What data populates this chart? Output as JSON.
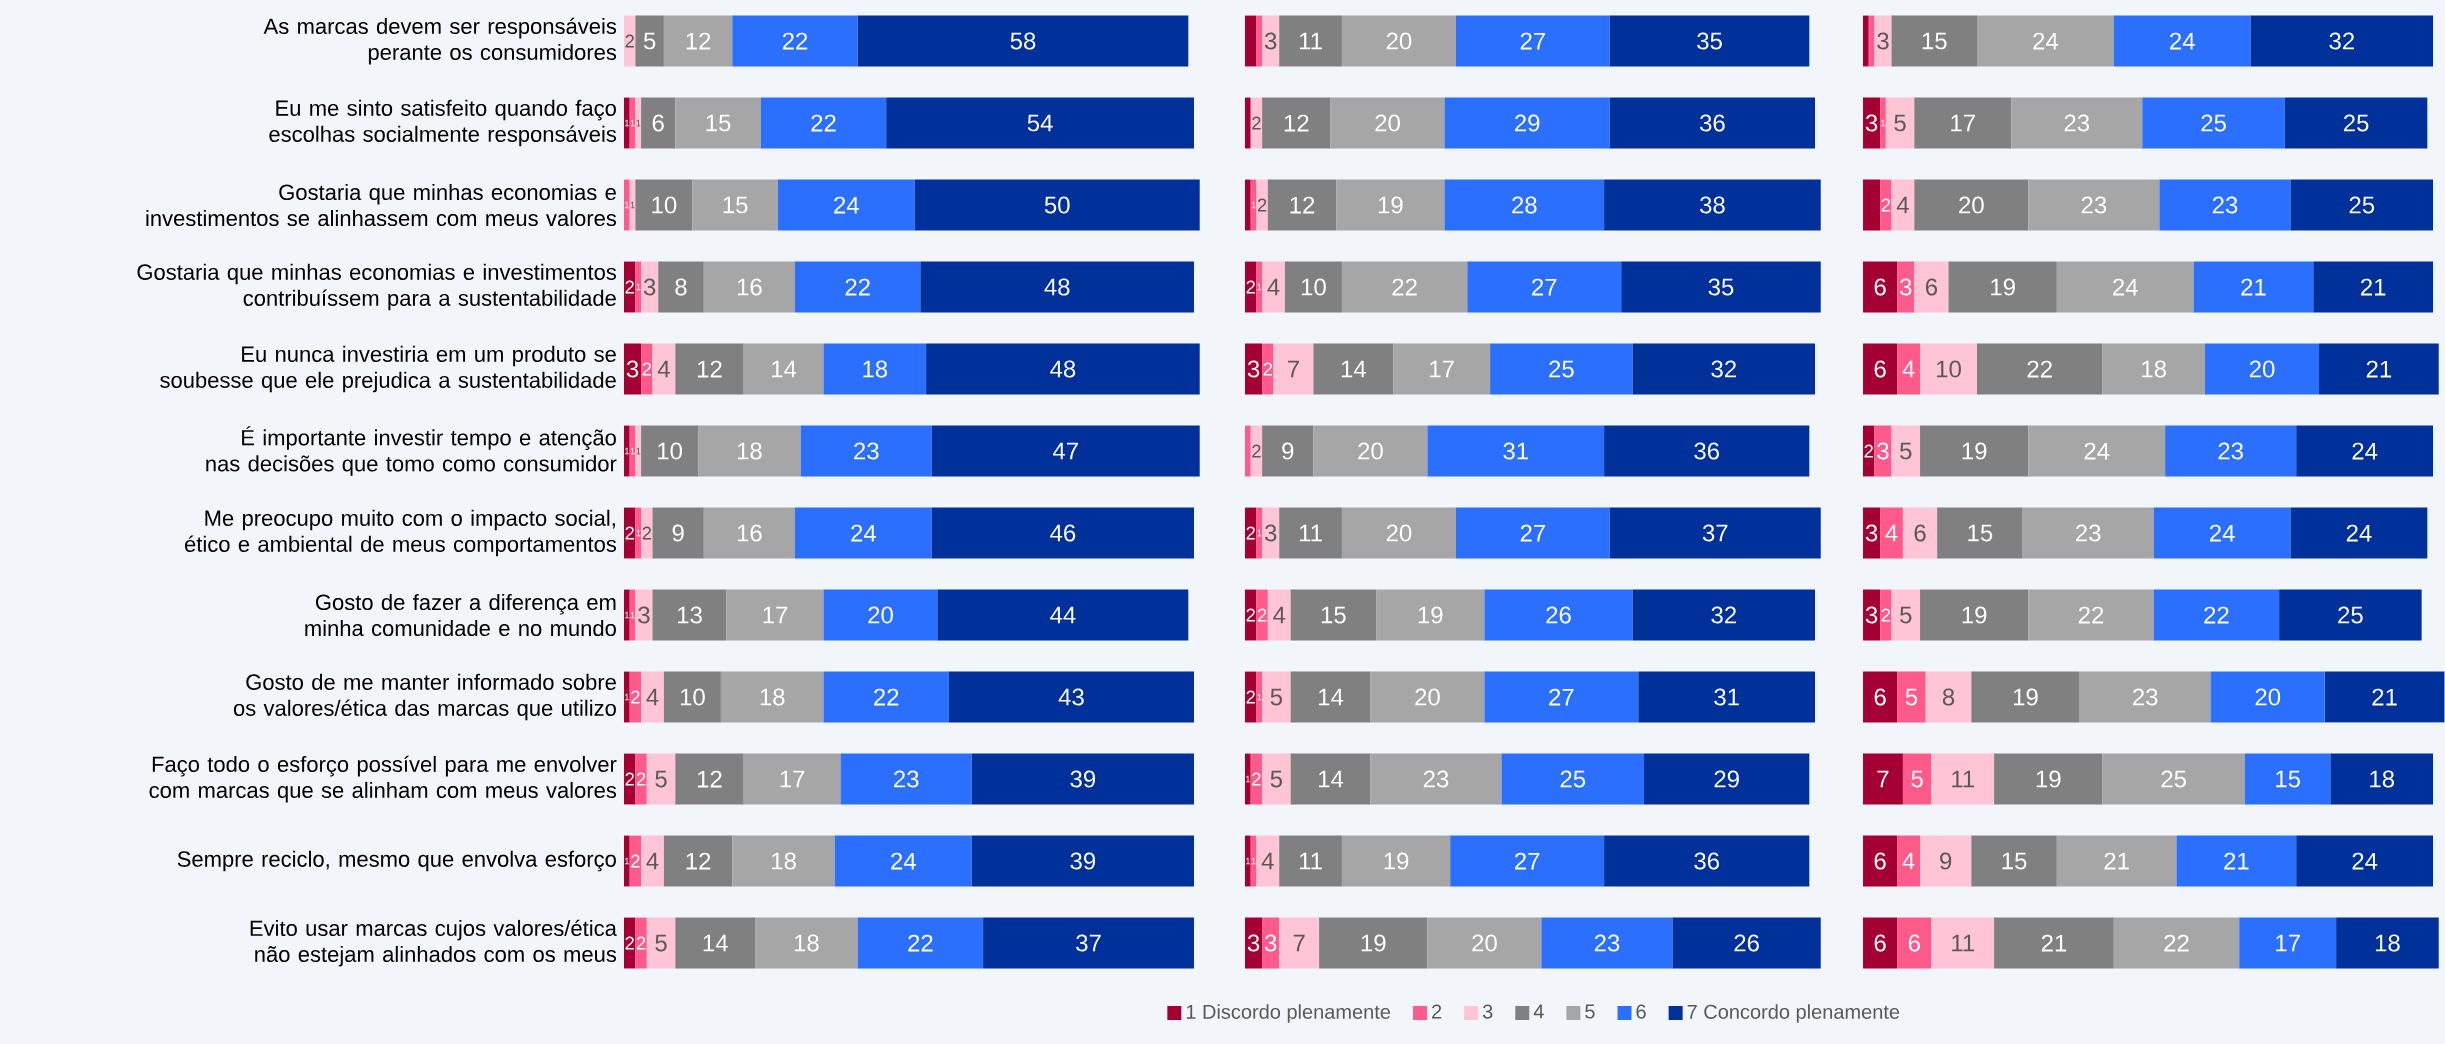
{
  "chart_data": [
    {
      "type": "bar",
      "orientation": "horizontal",
      "stacked": true,
      "data_labels": true,
      "tick_labels": "y",
      "categories": [
        "As marcas devem ser responsáveis perante os consumidores",
        "Eu me sinto satisfeito quando faço escolhas socialmente responsáveis",
        "Gostaria que minhas economias e investimentos se alinhassem com meus valores",
        "Gostaria que minhas economias e investimentos contribuíssem para a sustentabilidade",
        "Eu nunca investiria em um produto se soubesse que ele prejudica a sustentabilidade",
        "É importante investir tempo e atenção nas decisões que tomo como consumidor",
        "Me preocupo muito com o impacto social, ético e ambiental de meus comportamentos",
        "Gosto de fazer a diferença em minha comunidade e no mundo",
        "Gosto de me manter informado sobre os valores/ética das marcas que utilizo",
        "Faço todo o esforço possível para me envolver com marcas que se alinham com meus valores",
        "Sempre reciclo, mesmo que envolva esforço",
        "Evito usar marcas cujos valores/ética não estejam alinhados com os meus"
      ],
      "series": [
        {
          "color": "#a50034",
          "values": [
            null,
            1,
            null,
            2,
            3,
            1,
            2,
            1,
            1,
            2,
            1,
            2
          ]
        },
        {
          "color": "#ff5a8c",
          "values": [
            null,
            1,
            1,
            1,
            2,
            1,
            1,
            1,
            2,
            2,
            2,
            2
          ]
        },
        {
          "color": "#ffc4d6",
          "values": [
            2,
            1,
            1,
            3,
            4,
            1,
            2,
            3,
            4,
            5,
            4,
            5
          ]
        },
        {
          "color": "#808080",
          "values": [
            5,
            6,
            10,
            8,
            12,
            10,
            9,
            13,
            10,
            12,
            12,
            14
          ]
        },
        {
          "color": "#a6a6a6",
          "values": [
            12,
            15,
            15,
            16,
            14,
            18,
            16,
            17,
            18,
            17,
            18,
            18
          ]
        },
        {
          "color": "#2b6fff",
          "values": [
            22,
            22,
            24,
            22,
            18,
            23,
            24,
            20,
            22,
            23,
            24,
            22
          ]
        },
        {
          "color": "#00309a",
          "values": [
            58,
            54,
            50,
            48,
            48,
            47,
            46,
            44,
            43,
            39,
            39,
            37
          ]
        }
      ]
    },
    {
      "type": "bar",
      "orientation": "horizontal",
      "stacked": true,
      "data_labels": true,
      "tick_labels": false,
      "legend": "bottom",
      "categories": [
        null,
        null,
        null,
        null,
        null,
        null,
        null,
        null,
        null,
        null,
        null,
        null
      ],
      "series": [
        {
          "name": "1 Discordo plenamente",
          "color": "#a50034",
          "values": [
            2,
            1,
            1,
            2,
            3,
            null,
            2,
            2,
            2,
            1,
            1,
            3
          ],
          "value_labels": [
            null,
            null,
            null,
            "2",
            "3",
            null,
            "2",
            "2",
            "2",
            "1",
            "1",
            "3"
          ]
        },
        {
          "name": "2",
          "color": "#ff5a8c",
          "values": [
            1,
            null,
            1,
            1,
            2,
            1,
            1,
            2,
            1,
            2,
            1,
            3
          ],
          "value_labels": [
            null,
            null,
            "1",
            "1",
            "2",
            null,
            "1",
            "2",
            "1",
            "2",
            "1",
            "3"
          ]
        },
        {
          "name": "3",
          "color": "#ffc4d6",
          "values": [
            3,
            2,
            2,
            4,
            7,
            2,
            3,
            4,
            5,
            5,
            4,
            7
          ]
        },
        {
          "name": "4",
          "color": "#808080",
          "values": [
            11,
            12,
            12,
            10,
            14,
            9,
            11,
            15,
            14,
            14,
            11,
            19
          ]
        },
        {
          "name": "5",
          "color": "#a6a6a6",
          "values": [
            20,
            20,
            19,
            22,
            17,
            20,
            20,
            19,
            20,
            23,
            19,
            20
          ]
        },
        {
          "name": "6",
          "color": "#2b6fff",
          "values": [
            27,
            29,
            28,
            27,
            25,
            31,
            27,
            26,
            27,
            25,
            27,
            23
          ]
        },
        {
          "name": "7 Concordo plenamente",
          "color": "#00309a",
          "values": [
            35,
            36,
            38,
            35,
            32,
            36,
            37,
            32,
            31,
            29,
            36,
            26
          ]
        }
      ]
    },
    {
      "type": "bar",
      "orientation": "horizontal",
      "stacked": true,
      "data_labels": true,
      "tick_labels": false,
      "categories": [
        null,
        null,
        null,
        null,
        null,
        null,
        null,
        null,
        null,
        null,
        null,
        null
      ],
      "series": [
        {
          "color": "#a50034",
          "values": [
            1,
            3,
            3,
            6,
            6,
            2,
            3,
            3,
            6,
            7,
            6,
            6
          ],
          "value_labels": [
            null,
            "3",
            null,
            "6",
            "6",
            "2",
            "3",
            "3",
            "6",
            "7",
            "6",
            "6"
          ]
        },
        {
          "color": "#ff5a8c",
          "values": [
            1,
            1,
            2,
            3,
            4,
            3,
            4,
            2,
            5,
            5,
            4,
            6
          ],
          "value_labels": [
            null,
            "1",
            "2",
            "3",
            "4",
            "3",
            "4",
            "2",
            "5",
            "5",
            "4",
            "6"
          ]
        },
        {
          "color": "#ffc4d6",
          "values": [
            3,
            5,
            4,
            6,
            10,
            5,
            6,
            5,
            8,
            11,
            9,
            11
          ]
        },
        {
          "color": "#808080",
          "values": [
            15,
            17,
            20,
            19,
            22,
            19,
            15,
            19,
            19,
            19,
            15,
            21
          ]
        },
        {
          "color": "#a6a6a6",
          "values": [
            24,
            23,
            23,
            24,
            18,
            24,
            23,
            22,
            23,
            25,
            21,
            22
          ]
        },
        {
          "color": "#2b6fff",
          "values": [
            24,
            25,
            23,
            21,
            20,
            23,
            24,
            22,
            20,
            15,
            21,
            17
          ]
        },
        {
          "color": "#00309a",
          "values": [
            32,
            25,
            25,
            21,
            21,
            24,
            24,
            25,
            21,
            18,
            24,
            18
          ]
        }
      ]
    }
  ]
}
